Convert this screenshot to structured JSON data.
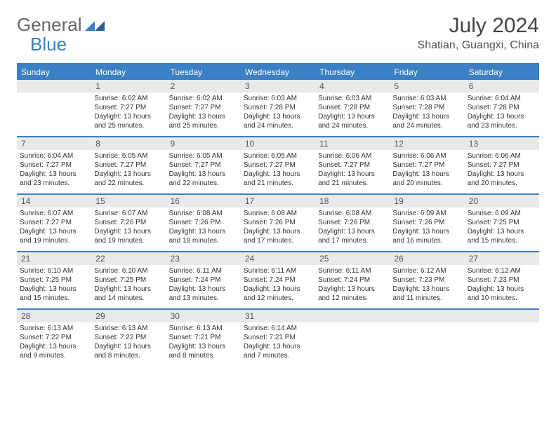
{
  "logo": {
    "text1": "General",
    "text2": "Blue"
  },
  "title": "July 2024",
  "location": "Shatian, Guangxi, China",
  "brand_color": "#3b7fc4",
  "header_bg": "#e9e9e9",
  "days_of_week": [
    "Sunday",
    "Monday",
    "Tuesday",
    "Wednesday",
    "Thursday",
    "Friday",
    "Saturday"
  ],
  "weeks": [
    [
      {
        "num": "",
        "empty": true
      },
      {
        "num": "1",
        "sunrise": "6:02 AM",
        "sunset": "7:27 PM",
        "daylight": "13 hours and 25 minutes."
      },
      {
        "num": "2",
        "sunrise": "6:02 AM",
        "sunset": "7:27 PM",
        "daylight": "13 hours and 25 minutes."
      },
      {
        "num": "3",
        "sunrise": "6:03 AM",
        "sunset": "7:28 PM",
        "daylight": "13 hours and 24 minutes."
      },
      {
        "num": "4",
        "sunrise": "6:03 AM",
        "sunset": "7:28 PM",
        "daylight": "13 hours and 24 minutes."
      },
      {
        "num": "5",
        "sunrise": "6:03 AM",
        "sunset": "7:28 PM",
        "daylight": "13 hours and 24 minutes."
      },
      {
        "num": "6",
        "sunrise": "6:04 AM",
        "sunset": "7:28 PM",
        "daylight": "13 hours and 23 minutes."
      }
    ],
    [
      {
        "num": "7",
        "sunrise": "6:04 AM",
        "sunset": "7:27 PM",
        "daylight": "13 hours and 23 minutes."
      },
      {
        "num": "8",
        "sunrise": "6:05 AM",
        "sunset": "7:27 PM",
        "daylight": "13 hours and 22 minutes."
      },
      {
        "num": "9",
        "sunrise": "6:05 AM",
        "sunset": "7:27 PM",
        "daylight": "13 hours and 22 minutes."
      },
      {
        "num": "10",
        "sunrise": "6:05 AM",
        "sunset": "7:27 PM",
        "daylight": "13 hours and 21 minutes."
      },
      {
        "num": "11",
        "sunrise": "6:06 AM",
        "sunset": "7:27 PM",
        "daylight": "13 hours and 21 minutes."
      },
      {
        "num": "12",
        "sunrise": "6:06 AM",
        "sunset": "7:27 PM",
        "daylight": "13 hours and 20 minutes."
      },
      {
        "num": "13",
        "sunrise": "6:06 AM",
        "sunset": "7:27 PM",
        "daylight": "13 hours and 20 minutes."
      }
    ],
    [
      {
        "num": "14",
        "sunrise": "6:07 AM",
        "sunset": "7:27 PM",
        "daylight": "13 hours and 19 minutes."
      },
      {
        "num": "15",
        "sunrise": "6:07 AM",
        "sunset": "7:26 PM",
        "daylight": "13 hours and 19 minutes."
      },
      {
        "num": "16",
        "sunrise": "6:08 AM",
        "sunset": "7:26 PM",
        "daylight": "13 hours and 18 minutes."
      },
      {
        "num": "17",
        "sunrise": "6:08 AM",
        "sunset": "7:26 PM",
        "daylight": "13 hours and 17 minutes."
      },
      {
        "num": "18",
        "sunrise": "6:08 AM",
        "sunset": "7:26 PM",
        "daylight": "13 hours and 17 minutes."
      },
      {
        "num": "19",
        "sunrise": "6:09 AM",
        "sunset": "7:26 PM",
        "daylight": "13 hours and 16 minutes."
      },
      {
        "num": "20",
        "sunrise": "6:09 AM",
        "sunset": "7:25 PM",
        "daylight": "13 hours and 15 minutes."
      }
    ],
    [
      {
        "num": "21",
        "sunrise": "6:10 AM",
        "sunset": "7:25 PM",
        "daylight": "13 hours and 15 minutes."
      },
      {
        "num": "22",
        "sunrise": "6:10 AM",
        "sunset": "7:25 PM",
        "daylight": "13 hours and 14 minutes."
      },
      {
        "num": "23",
        "sunrise": "6:11 AM",
        "sunset": "7:24 PM",
        "daylight": "13 hours and 13 minutes."
      },
      {
        "num": "24",
        "sunrise": "6:11 AM",
        "sunset": "7:24 PM",
        "daylight": "13 hours and 12 minutes."
      },
      {
        "num": "25",
        "sunrise": "6:11 AM",
        "sunset": "7:24 PM",
        "daylight": "13 hours and 12 minutes."
      },
      {
        "num": "26",
        "sunrise": "6:12 AM",
        "sunset": "7:23 PM",
        "daylight": "13 hours and 11 minutes."
      },
      {
        "num": "27",
        "sunrise": "6:12 AM",
        "sunset": "7:23 PM",
        "daylight": "13 hours and 10 minutes."
      }
    ],
    [
      {
        "num": "28",
        "sunrise": "6:13 AM",
        "sunset": "7:22 PM",
        "daylight": "13 hours and 9 minutes."
      },
      {
        "num": "29",
        "sunrise": "6:13 AM",
        "sunset": "7:22 PM",
        "daylight": "13 hours and 8 minutes."
      },
      {
        "num": "30",
        "sunrise": "6:13 AM",
        "sunset": "7:21 PM",
        "daylight": "13 hours and 8 minutes."
      },
      {
        "num": "31",
        "sunrise": "6:14 AM",
        "sunset": "7:21 PM",
        "daylight": "13 hours and 7 minutes."
      },
      {
        "num": "",
        "empty": true
      },
      {
        "num": "",
        "empty": true
      },
      {
        "num": "",
        "empty": true
      }
    ]
  ]
}
